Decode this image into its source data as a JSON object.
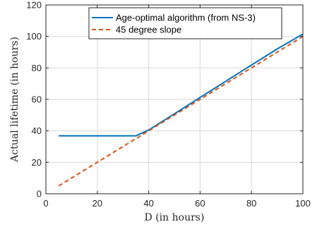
{
  "chart_data": {
    "type": "line",
    "title": "",
    "xlabel": "D (in hours)",
    "ylabel": "Actual lifetime (in hours)",
    "xlim": [
      0,
      100
    ],
    "ylim": [
      0,
      120
    ],
    "xticks": [
      0,
      20,
      40,
      60,
      80,
      100
    ],
    "yticks": [
      0,
      20,
      40,
      60,
      80,
      100,
      120
    ],
    "grid": true,
    "legend_position": "top-right",
    "series": [
      {
        "name": "Age-optimal algorithm (from NS-3)",
        "style": "solid",
        "color": "#0072BD",
        "x": [
          5,
          35,
          40,
          50,
          60,
          70,
          80,
          90,
          100
        ],
        "y": [
          36.8,
          36.8,
          40.5,
          50.8,
          61.2,
          71.5,
          81.8,
          92.0,
          101.5
        ]
      },
      {
        "name": "45 degree slope",
        "style": "dashed",
        "color": "#D95319",
        "x": [
          5,
          100
        ],
        "y": [
          5,
          100
        ]
      }
    ]
  }
}
